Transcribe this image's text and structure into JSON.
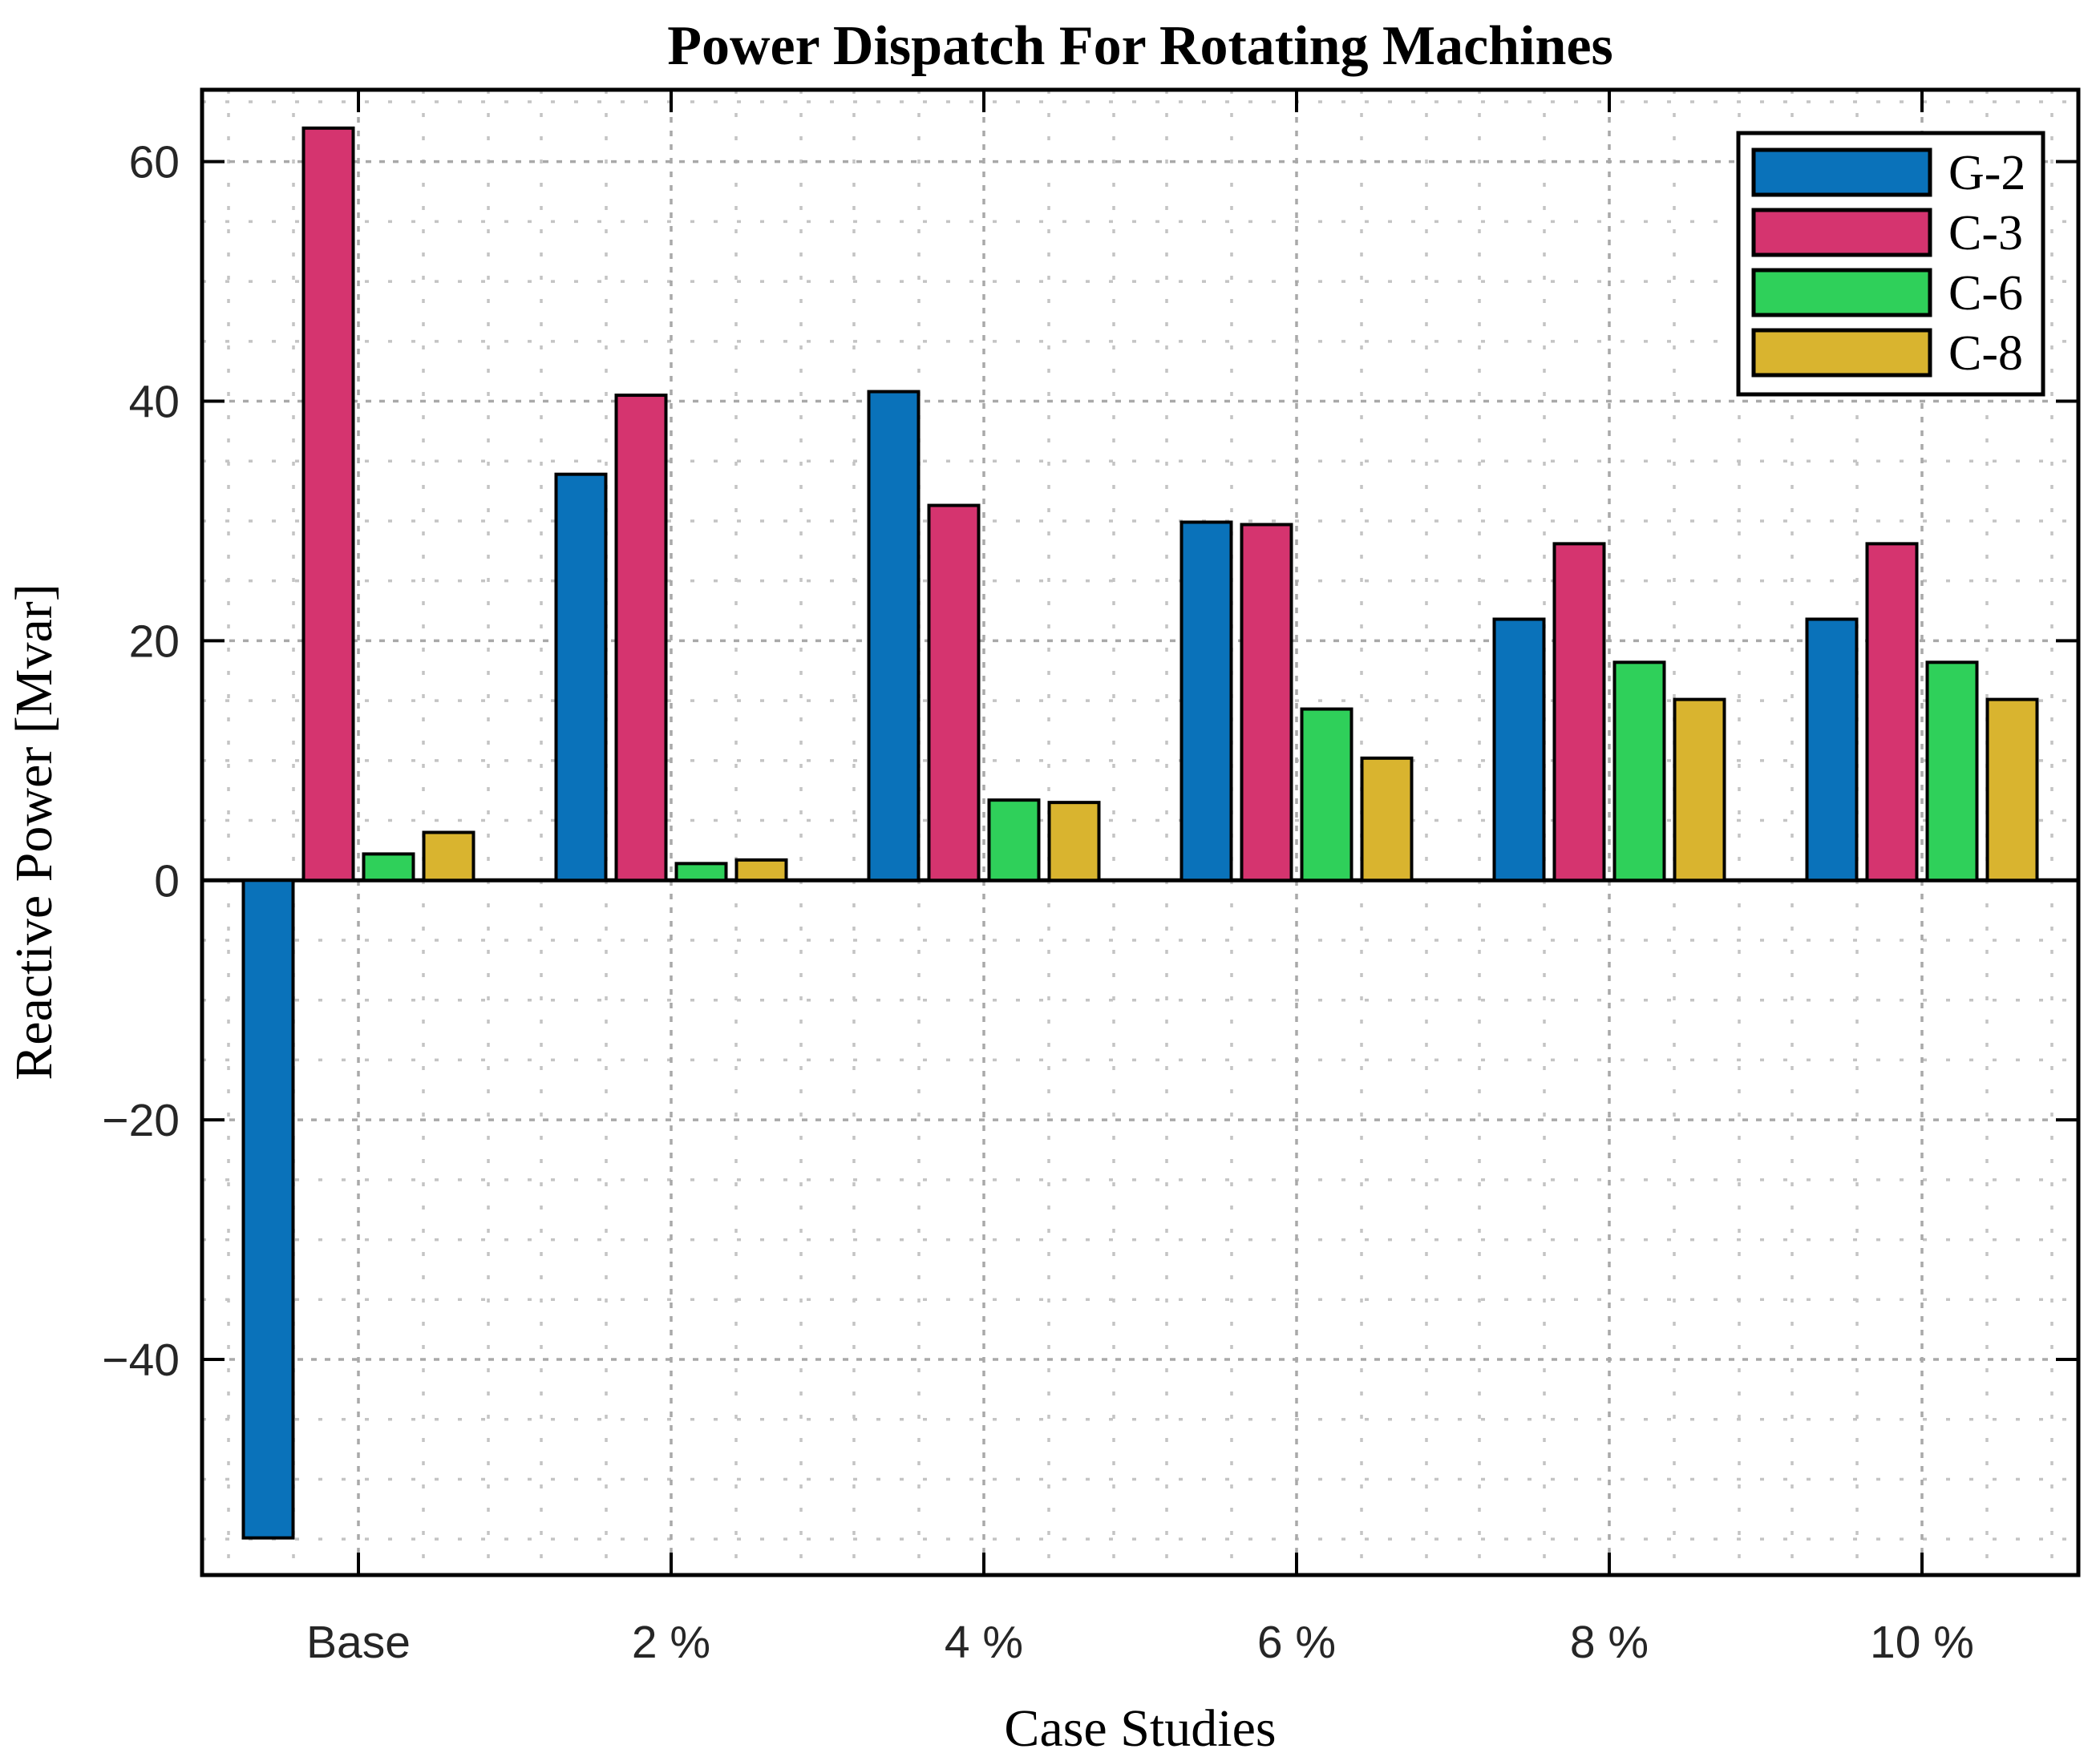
{
  "chart_data": {
    "type": "bar",
    "title": "Power Dispatch For Rotating Machines",
    "xlabel": "Case Studies",
    "ylabel": "Reactive Power [Mvar]",
    "categories": [
      "Base",
      "2 %",
      "4 %",
      "6 %",
      "8 %",
      "10 %"
    ],
    "series": [
      {
        "name": "G-2",
        "color": "#0a72ba",
        "values": [
          -54.9,
          33.9,
          40.8,
          29.9,
          21.8,
          21.8
        ]
      },
      {
        "name": "C-3",
        "color": "#d5346f",
        "values": [
          62.8,
          40.5,
          31.3,
          29.7,
          28.1,
          28.1
        ]
      },
      {
        "name": "C-6",
        "color": "#2fd05a",
        "values": [
          2.2,
          1.4,
          6.7,
          14.3,
          18.2,
          18.2
        ]
      },
      {
        "name": "C-8",
        "color": "#d9b42f",
        "values": [
          4.0,
          1.7,
          6.5,
          10.2,
          15.1,
          15.1
        ]
      }
    ],
    "ylim": [
      -58,
      66
    ],
    "ytick_values": [
      60,
      40,
      20,
      0,
      -20,
      -40
    ],
    "ytick_labels": [
      "60",
      "40",
      "20",
      "0",
      "−20",
      "−40"
    ],
    "minor_grid_step_y": 5,
    "grid": "major and minor dotted gray grid, both axes",
    "bar_edge_color": "#000000",
    "legend_position": "top-right inside",
    "legend_labels": [
      "G-2",
      "C-3",
      "C-6",
      "C-8"
    ]
  }
}
